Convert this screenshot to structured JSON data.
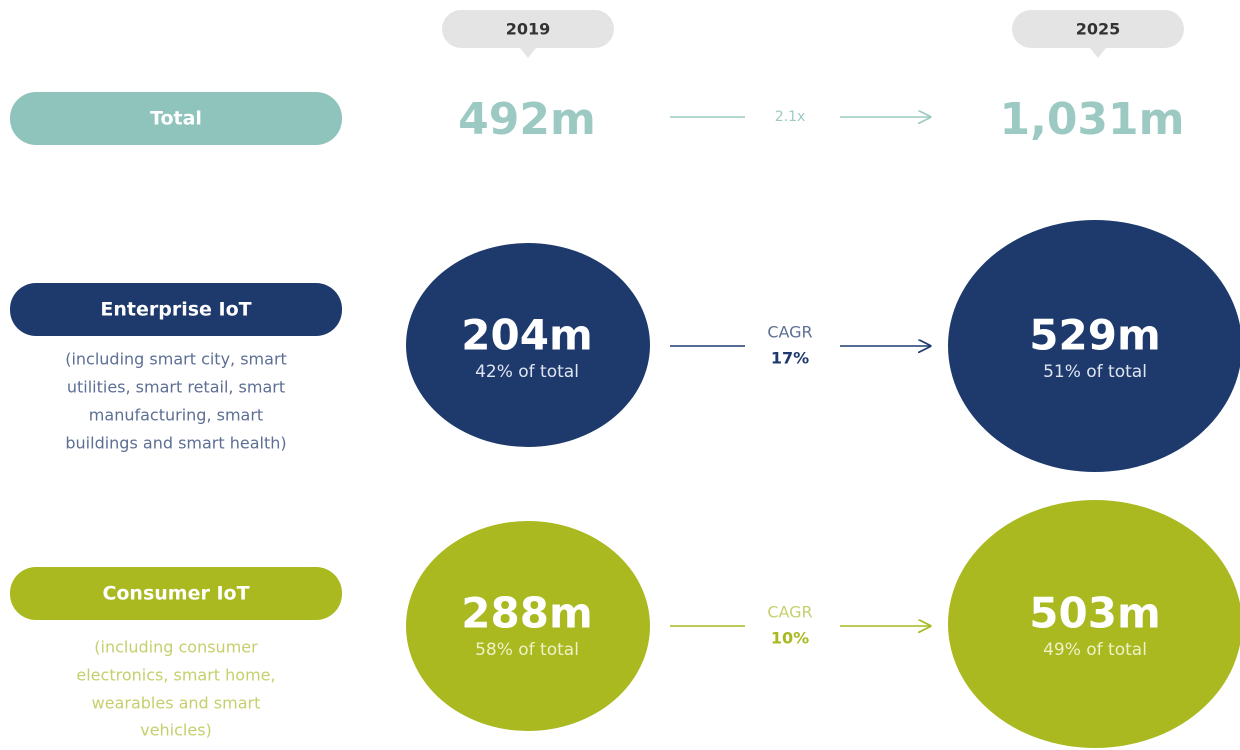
{
  "years": [
    "2019",
    "2025"
  ],
  "rows": [
    {
      "label": "Total",
      "value_2019": "492m",
      "value_2025": "1,031m",
      "link": [
        "2.1x"
      ]
    },
    {
      "label": "Enterprise IoT",
      "description": [
        "(including smart city, smart",
        "utilities, smart retail, smart",
        "manufacturing, smart",
        "buildings and smart health)"
      ],
      "value_2019": "204m",
      "share_2019": "42% of total",
      "value_2025": "529m",
      "share_2025": "51% of total",
      "link": [
        "CAGR",
        "17%"
      ]
    },
    {
      "label": "Consumer IoT",
      "description": [
        "(including consumer",
        "electronics, smart home,",
        "wearables and smart",
        "vehicles)"
      ],
      "value_2019": "288m",
      "share_2019": "58% of total",
      "value_2025": "503m",
      "share_2025": "49% of total",
      "link": [
        "CAGR",
        "10%"
      ]
    }
  ]
}
